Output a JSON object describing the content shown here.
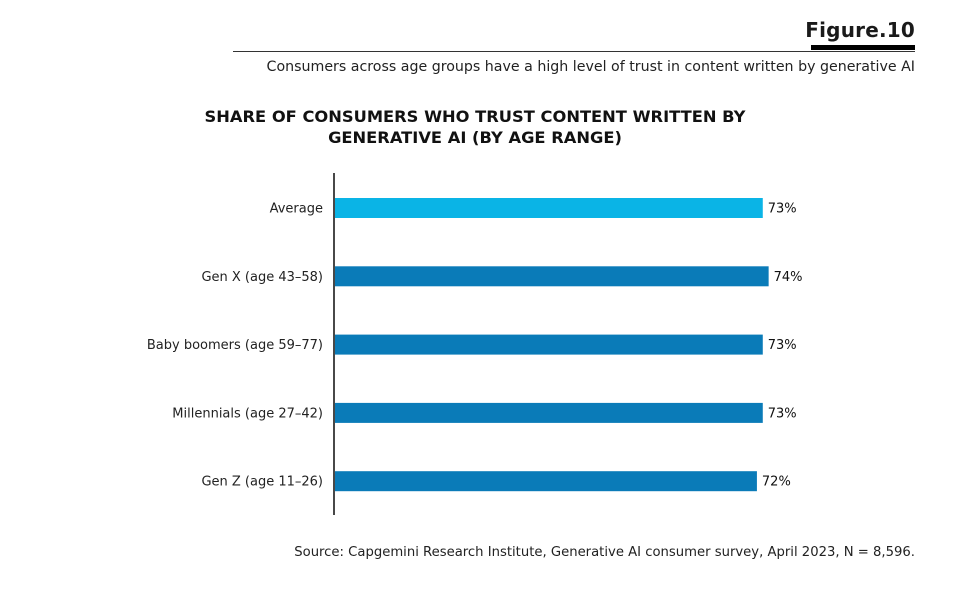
{
  "figure": {
    "label": "Figure.10",
    "subtitle": "Consumers across age groups have a high level of trust in content written by generative AI"
  },
  "source": "Source: Capgemini Research Institute, Generative AI consumer survey, April 2023, N = 8,596.",
  "colors": {
    "average_bar": "#0ab4e6",
    "group_bar": "#0a7bb8",
    "axis": "#1a1a1a"
  },
  "chart_data": {
    "type": "bar",
    "orientation": "horizontal",
    "title": "SHARE OF CONSUMERS WHO TRUST CONTENT WRITTEN BY GENERATIVE AI (BY AGE RANGE)",
    "title_lines": [
      "SHARE OF CONSUMERS WHO TRUST CONTENT WRITTEN BY",
      "GENERATIVE AI (BY AGE RANGE)"
    ],
    "xlabel": "",
    "ylabel": "",
    "unit": "%",
    "xlim": [
      0,
      100
    ],
    "grid": false,
    "legend": "none",
    "categories": [
      "Average",
      "Gen X (age 43–58)",
      "Baby boomers (age 59–77)",
      "Millennials (age 27–42)",
      "Gen Z (age 11–26)"
    ],
    "values": [
      73,
      74,
      73,
      73,
      72
    ],
    "value_labels": [
      "73%",
      "74%",
      "73%",
      "73%",
      "72%"
    ],
    "highlight": [
      "average",
      "group",
      "group",
      "group",
      "group"
    ]
  }
}
